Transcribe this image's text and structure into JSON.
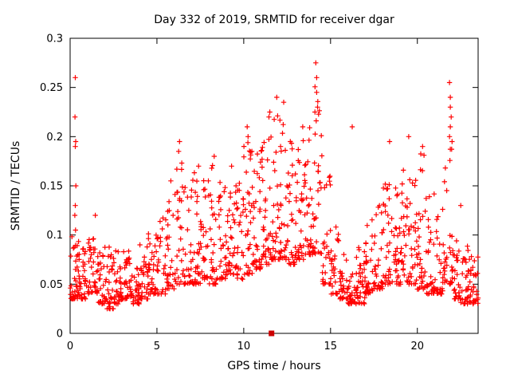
{
  "page": {
    "background": "#ffffff"
  },
  "chart_data": {
    "type": "scatter",
    "title": "Day 332 of 2019, SRMTID for receiver dgar",
    "xlabel": "GPS time / hours",
    "ylabel": "SRMTID / TECUs",
    "xlim": [
      0,
      23.5
    ],
    "ylim": [
      0,
      0.3
    ],
    "xticks": [
      0,
      5,
      10,
      15,
      20
    ],
    "xtick_labels": [
      "0",
      "5",
      "10",
      "15",
      "20"
    ],
    "yticks": [
      0,
      0.05,
      0.1,
      0.15,
      0.2,
      0.25,
      0.3
    ],
    "ytick_labels": [
      "0",
      "0.05",
      "0.1",
      "0.15",
      "0.2",
      "0.25",
      "0.3"
    ],
    "legend": "none",
    "grid": false,
    "marker": "plus",
    "marker_color": "#ff0000",
    "axis_color": "#000000",
    "seed": 20190332,
    "skew_exponent": 2.2,
    "bins": [
      [
        0.0,
        0.5,
        38,
        0.035,
        0.1
      ],
      [
        0.5,
        1.0,
        32,
        0.035,
        0.09
      ],
      [
        1.0,
        1.5,
        32,
        0.04,
        0.1
      ],
      [
        1.5,
        2.0,
        32,
        0.03,
        0.09
      ],
      [
        2.0,
        2.5,
        34,
        0.025,
        0.09
      ],
      [
        2.5,
        3.0,
        34,
        0.03,
        0.085
      ],
      [
        3.0,
        3.5,
        32,
        0.035,
        0.09
      ],
      [
        3.5,
        4.0,
        32,
        0.03,
        0.085
      ],
      [
        4.0,
        4.5,
        32,
        0.035,
        0.09
      ],
      [
        4.5,
        5.0,
        32,
        0.04,
        0.105
      ],
      [
        5.0,
        5.5,
        28,
        0.04,
        0.12
      ],
      [
        5.5,
        6.0,
        28,
        0.045,
        0.135
      ],
      [
        6.0,
        6.5,
        28,
        0.05,
        0.185
      ],
      [
        6.5,
        7.0,
        28,
        0.05,
        0.15
      ],
      [
        7.0,
        7.5,
        30,
        0.05,
        0.165
      ],
      [
        7.5,
        8.0,
        30,
        0.055,
        0.16
      ],
      [
        8.0,
        8.5,
        30,
        0.05,
        0.175
      ],
      [
        8.5,
        9.0,
        30,
        0.055,
        0.16
      ],
      [
        9.0,
        9.5,
        30,
        0.06,
        0.165
      ],
      [
        9.5,
        10.0,
        30,
        0.055,
        0.16
      ],
      [
        10.0,
        10.5,
        32,
        0.06,
        0.2
      ],
      [
        10.5,
        11.0,
        32,
        0.065,
        0.19
      ],
      [
        11.0,
        11.5,
        32,
        0.07,
        0.215
      ],
      [
        11.5,
        12.0,
        32,
        0.075,
        0.23
      ],
      [
        12.0,
        12.5,
        32,
        0.075,
        0.225
      ],
      [
        12.5,
        13.0,
        32,
        0.07,
        0.2
      ],
      [
        13.0,
        13.5,
        32,
        0.075,
        0.205
      ],
      [
        13.5,
        14.0,
        32,
        0.08,
        0.215
      ],
      [
        14.0,
        14.5,
        30,
        0.08,
        0.26
      ],
      [
        14.5,
        15.0,
        26,
        0.05,
        0.17
      ],
      [
        15.0,
        15.5,
        26,
        0.04,
        0.12
      ],
      [
        15.5,
        16.0,
        30,
        0.035,
        0.085
      ],
      [
        16.0,
        16.5,
        34,
        0.03,
        0.08
      ],
      [
        16.5,
        17.0,
        34,
        0.03,
        0.09
      ],
      [
        17.0,
        17.5,
        30,
        0.04,
        0.12
      ],
      [
        17.5,
        18.0,
        30,
        0.045,
        0.14
      ],
      [
        18.0,
        18.5,
        30,
        0.05,
        0.16
      ],
      [
        18.5,
        19.0,
        30,
        0.05,
        0.15
      ],
      [
        19.0,
        19.5,
        30,
        0.05,
        0.17
      ],
      [
        19.5,
        20.0,
        30,
        0.05,
        0.16
      ],
      [
        20.0,
        20.5,
        30,
        0.045,
        0.185
      ],
      [
        20.5,
        21.0,
        30,
        0.04,
        0.145
      ],
      [
        21.0,
        21.5,
        28,
        0.04,
        0.13
      ],
      [
        21.5,
        22.0,
        28,
        0.05,
        0.2
      ],
      [
        22.0,
        22.5,
        30,
        0.035,
        0.1
      ],
      [
        22.5,
        23.0,
        30,
        0.03,
        0.09
      ],
      [
        23.0,
        23.5,
        30,
        0.03,
        0.08
      ]
    ],
    "notable_points": [
      [
        0.3,
        0.26
      ],
      [
        0.28,
        0.22
      ],
      [
        0.32,
        0.195
      ],
      [
        0.3,
        0.19
      ],
      [
        0.33,
        0.15
      ],
      [
        0.3,
        0.13
      ],
      [
        0.27,
        0.12
      ],
      [
        0.31,
        0.105
      ],
      [
        1.45,
        0.12
      ],
      [
        5.8,
        0.155
      ],
      [
        6.3,
        0.195
      ],
      [
        6.25,
        0.185
      ],
      [
        7.4,
        0.17
      ],
      [
        8.3,
        0.18
      ],
      [
        9.3,
        0.17
      ],
      [
        10.2,
        0.21
      ],
      [
        10.25,
        0.2
      ],
      [
        11.45,
        0.22
      ],
      [
        11.5,
        0.225
      ],
      [
        11.9,
        0.24
      ],
      [
        12.3,
        0.235
      ],
      [
        13.4,
        0.21
      ],
      [
        14.15,
        0.275
      ],
      [
        14.2,
        0.26
      ],
      [
        14.2,
        0.245
      ],
      [
        14.25,
        0.23
      ],
      [
        14.1,
        0.225
      ],
      [
        16.25,
        0.21
      ],
      [
        18.4,
        0.195
      ],
      [
        19.5,
        0.2
      ],
      [
        20.3,
        0.19
      ],
      [
        21.85,
        0.255
      ],
      [
        21.9,
        0.24
      ],
      [
        21.9,
        0.23
      ],
      [
        21.95,
        0.22
      ],
      [
        21.9,
        0.21
      ],
      [
        21.85,
        0.2
      ],
      [
        22.0,
        0.195
      ],
      [
        22.5,
        0.13
      ]
    ],
    "axis_marker": {
      "x": 11.6,
      "y": 0,
      "shape": "filled-square",
      "color": "#cc0000"
    }
  }
}
